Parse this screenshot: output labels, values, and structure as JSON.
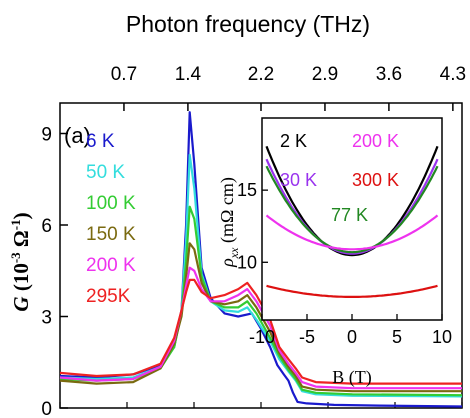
{
  "chart_data": [
    {
      "type": "line",
      "panel_label": "(a)",
      "ylabel": {
        "main": "G",
        "unit_open": " (10",
        "unit_exp": "-3",
        "unit_mid": " Ω",
        "unit_exp2": "-1",
        "unit_close": ")"
      },
      "top_axis": {
        "label": "Photon frequency (THz)",
        "ticks": [
          "0.7",
          "1.4",
          "2.2",
          "2.9",
          "3.6",
          "4.3"
        ]
      },
      "ylim": [
        0,
        10
      ],
      "yticks": [
        "0",
        "3",
        "6",
        "9"
      ],
      "xlim": [
        0,
        4.4
      ],
      "series": [
        {
          "name": "6 K",
          "color": "#1a1acc",
          "points": [
            [
              0,
              1.05
            ],
            [
              0.4,
              1.0
            ],
            [
              0.8,
              1.1
            ],
            [
              1.1,
              1.4
            ],
            [
              1.25,
              2.0
            ],
            [
              1.33,
              3.2
            ],
            [
              1.38,
              6.0
            ],
            [
              1.42,
              9.7
            ],
            [
              1.47,
              8.0
            ],
            [
              1.55,
              4.6
            ],
            [
              1.65,
              3.6
            ],
            [
              1.8,
              3.1
            ],
            [
              1.95,
              3.0
            ],
            [
              2.1,
              3.1
            ],
            [
              2.2,
              2.6
            ],
            [
              2.3,
              2.0
            ],
            [
              2.38,
              1.4
            ],
            [
              2.45,
              1.1
            ],
            [
              2.5,
              0.9
            ],
            [
              2.55,
              0.5
            ],
            [
              2.6,
              0.2
            ],
            [
              2.7,
              0.15
            ],
            [
              3.0,
              0.1
            ],
            [
              3.5,
              0.08
            ],
            [
              4.4,
              0.05
            ]
          ]
        },
        {
          "name": "50 K",
          "color": "#33dddd",
          "points": [
            [
              0,
              1.0
            ],
            [
              0.4,
              0.95
            ],
            [
              0.8,
              1.0
            ],
            [
              1.1,
              1.35
            ],
            [
              1.25,
              2.0
            ],
            [
              1.33,
              3.2
            ],
            [
              1.38,
              5.5
            ],
            [
              1.42,
              8.3
            ],
            [
              1.47,
              7.2
            ],
            [
              1.55,
              4.4
            ],
            [
              1.65,
              3.5
            ],
            [
              1.8,
              3.2
            ],
            [
              1.95,
              3.15
            ],
            [
              2.05,
              3.3
            ],
            [
              2.15,
              2.9
            ],
            [
              2.3,
              2.2
            ],
            [
              2.4,
              1.6
            ],
            [
              2.5,
              1.2
            ],
            [
              2.58,
              0.9
            ],
            [
              2.65,
              0.55
            ],
            [
              2.8,
              0.45
            ],
            [
              3.2,
              0.4
            ],
            [
              4.4,
              0.38
            ]
          ]
        },
        {
          "name": "100 K",
          "color": "#33cc33",
          "points": [
            [
              0,
              0.95
            ],
            [
              0.4,
              0.9
            ],
            [
              0.8,
              0.95
            ],
            [
              1.1,
              1.3
            ],
            [
              1.25,
              2.0
            ],
            [
              1.33,
              3.1
            ],
            [
              1.38,
              4.8
            ],
            [
              1.42,
              6.6
            ],
            [
              1.47,
              6.2
            ],
            [
              1.55,
              4.3
            ],
            [
              1.65,
              3.5
            ],
            [
              1.8,
              3.3
            ],
            [
              1.95,
              3.3
            ],
            [
              2.05,
              3.5
            ],
            [
              2.15,
              3.1
            ],
            [
              2.3,
              2.3
            ],
            [
              2.4,
              1.7
            ],
            [
              2.5,
              1.25
            ],
            [
              2.58,
              0.95
            ],
            [
              2.65,
              0.6
            ],
            [
              2.8,
              0.5
            ],
            [
              3.2,
              0.45
            ],
            [
              4.4,
              0.42
            ]
          ]
        },
        {
          "name": "150 K",
          "color": "#7a6a10",
          "points": [
            [
              0,
              0.9
            ],
            [
              0.4,
              0.8
            ],
            [
              0.8,
              0.85
            ],
            [
              1.1,
              1.3
            ],
            [
              1.25,
              2.1
            ],
            [
              1.33,
              3.0
            ],
            [
              1.38,
              4.3
            ],
            [
              1.42,
              5.4
            ],
            [
              1.47,
              5.2
            ],
            [
              1.55,
              4.1
            ],
            [
              1.65,
              3.5
            ],
            [
              1.8,
              3.4
            ],
            [
              1.95,
              3.5
            ],
            [
              2.05,
              3.7
            ],
            [
              2.15,
              3.3
            ],
            [
              2.3,
              2.5
            ],
            [
              2.4,
              1.8
            ],
            [
              2.5,
              1.35
            ],
            [
              2.58,
              1.05
            ],
            [
              2.65,
              0.7
            ],
            [
              2.8,
              0.6
            ],
            [
              3.2,
              0.55
            ],
            [
              4.4,
              0.55
            ]
          ]
        },
        {
          "name": "200 K",
          "color": "#ee33ee",
          "points": [
            [
              0,
              1.0
            ],
            [
              0.4,
              0.9
            ],
            [
              0.8,
              0.95
            ],
            [
              1.1,
              1.35
            ],
            [
              1.25,
              2.2
            ],
            [
              1.33,
              3.2
            ],
            [
              1.38,
              4.0
            ],
            [
              1.42,
              4.6
            ],
            [
              1.47,
              4.5
            ],
            [
              1.55,
              3.9
            ],
            [
              1.65,
              3.5
            ],
            [
              1.8,
              3.5
            ],
            [
              1.95,
              3.7
            ],
            [
              2.05,
              3.9
            ],
            [
              2.15,
              3.5
            ],
            [
              2.3,
              2.7
            ],
            [
              2.4,
              1.9
            ],
            [
              2.5,
              1.45
            ],
            [
              2.58,
              1.15
            ],
            [
              2.65,
              0.85
            ],
            [
              2.8,
              0.7
            ],
            [
              3.2,
              0.65
            ],
            [
              4.4,
              0.65
            ]
          ]
        },
        {
          "name": "295K",
          "color": "#ee2222",
          "points": [
            [
              0,
              1.15
            ],
            [
              0.4,
              1.05
            ],
            [
              0.8,
              1.1
            ],
            [
              1.1,
              1.45
            ],
            [
              1.25,
              2.3
            ],
            [
              1.33,
              3.2
            ],
            [
              1.38,
              3.8
            ],
            [
              1.42,
              4.2
            ],
            [
              1.47,
              4.2
            ],
            [
              1.55,
              3.8
            ],
            [
              1.65,
              3.6
            ],
            [
              1.8,
              3.7
            ],
            [
              1.95,
              3.9
            ],
            [
              2.05,
              4.1
            ],
            [
              2.15,
              3.7
            ],
            [
              2.3,
              2.9
            ],
            [
              2.4,
              2.0
            ],
            [
              2.5,
              1.6
            ],
            [
              2.58,
              1.3
            ],
            [
              2.65,
              1.0
            ],
            [
              2.8,
              0.85
            ],
            [
              3.2,
              0.8
            ],
            [
              4.4,
              0.8
            ]
          ]
        }
      ]
    },
    {
      "type": "line",
      "inset": true,
      "xlabel": "B (T)",
      "ylabel": {
        "main": "ρ",
        "sub": "xx",
        "unit": " (mΩ cm)"
      },
      "xlim": [
        -10,
        10
      ],
      "ylim": [
        6,
        20
      ],
      "xticks": [
        "-10",
        "-5",
        "0",
        "5",
        "10"
      ],
      "yticks": [
        "10",
        "15"
      ],
      "series": [
        {
          "name": "2 K",
          "color": "#000000",
          "a": 0.0835,
          "b": 10.5
        },
        {
          "name": "30 K",
          "color": "#9933ee",
          "a": 0.0725,
          "b": 10.6
        },
        {
          "name": "77 K",
          "color": "#228822",
          "a": 0.066,
          "b": 10.7
        },
        {
          "name": "200 K",
          "color": "#ee33ee",
          "a": 0.026,
          "b": 10.9
        },
        {
          "name": "300 K",
          "color": "#dd1111",
          "a": 0.0085,
          "b": 7.6
        }
      ]
    }
  ]
}
